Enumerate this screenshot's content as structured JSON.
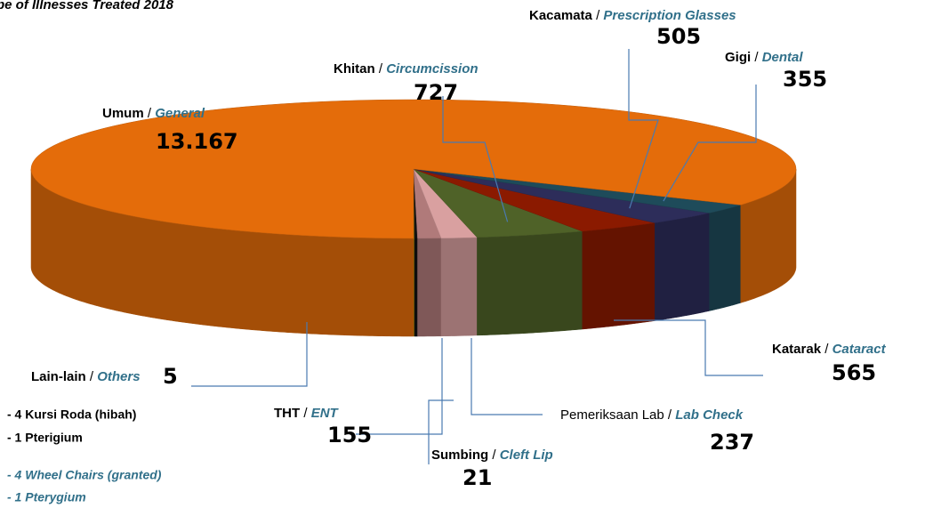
{
  "chart_data": {
    "type": "pie3d",
    "title": "pe of Illnesses Treated 2018",
    "separator": "/",
    "categories": [
      "Lain-lain",
      "Sumbing",
      "THT",
      "Pemeriksaan Lab",
      "Khitan",
      "Katarak",
      "Kacamata",
      "Gigi",
      "Umum"
    ],
    "categories_en": [
      "Others",
      "Cleft Lip",
      "ENT",
      "Lab Check",
      "Circumcission",
      "Cataract",
      "Prescription Glasses",
      "Dental",
      "General"
    ],
    "values": [
      5,
      21,
      155,
      237,
      727,
      565,
      505,
      355,
      13167
    ],
    "value_labels": [
      "5",
      "21",
      "155",
      "237",
      "727",
      "565",
      "505",
      "355",
      "13.167"
    ],
    "colors": [
      "#e6e000",
      "#111111",
      "#b07a7a",
      "#d9a0a0",
      "#4f6228",
      "#8b1a00",
      "#2d2d5a",
      "#1e4b5a",
      "#e46c0a"
    ],
    "notes": [
      "- 4 Kursi Roda (hibah)",
      "- 1 Pterigium",
      "- 4 Wheel Chairs (granted)",
      "- 1 Pterygium"
    ]
  }
}
